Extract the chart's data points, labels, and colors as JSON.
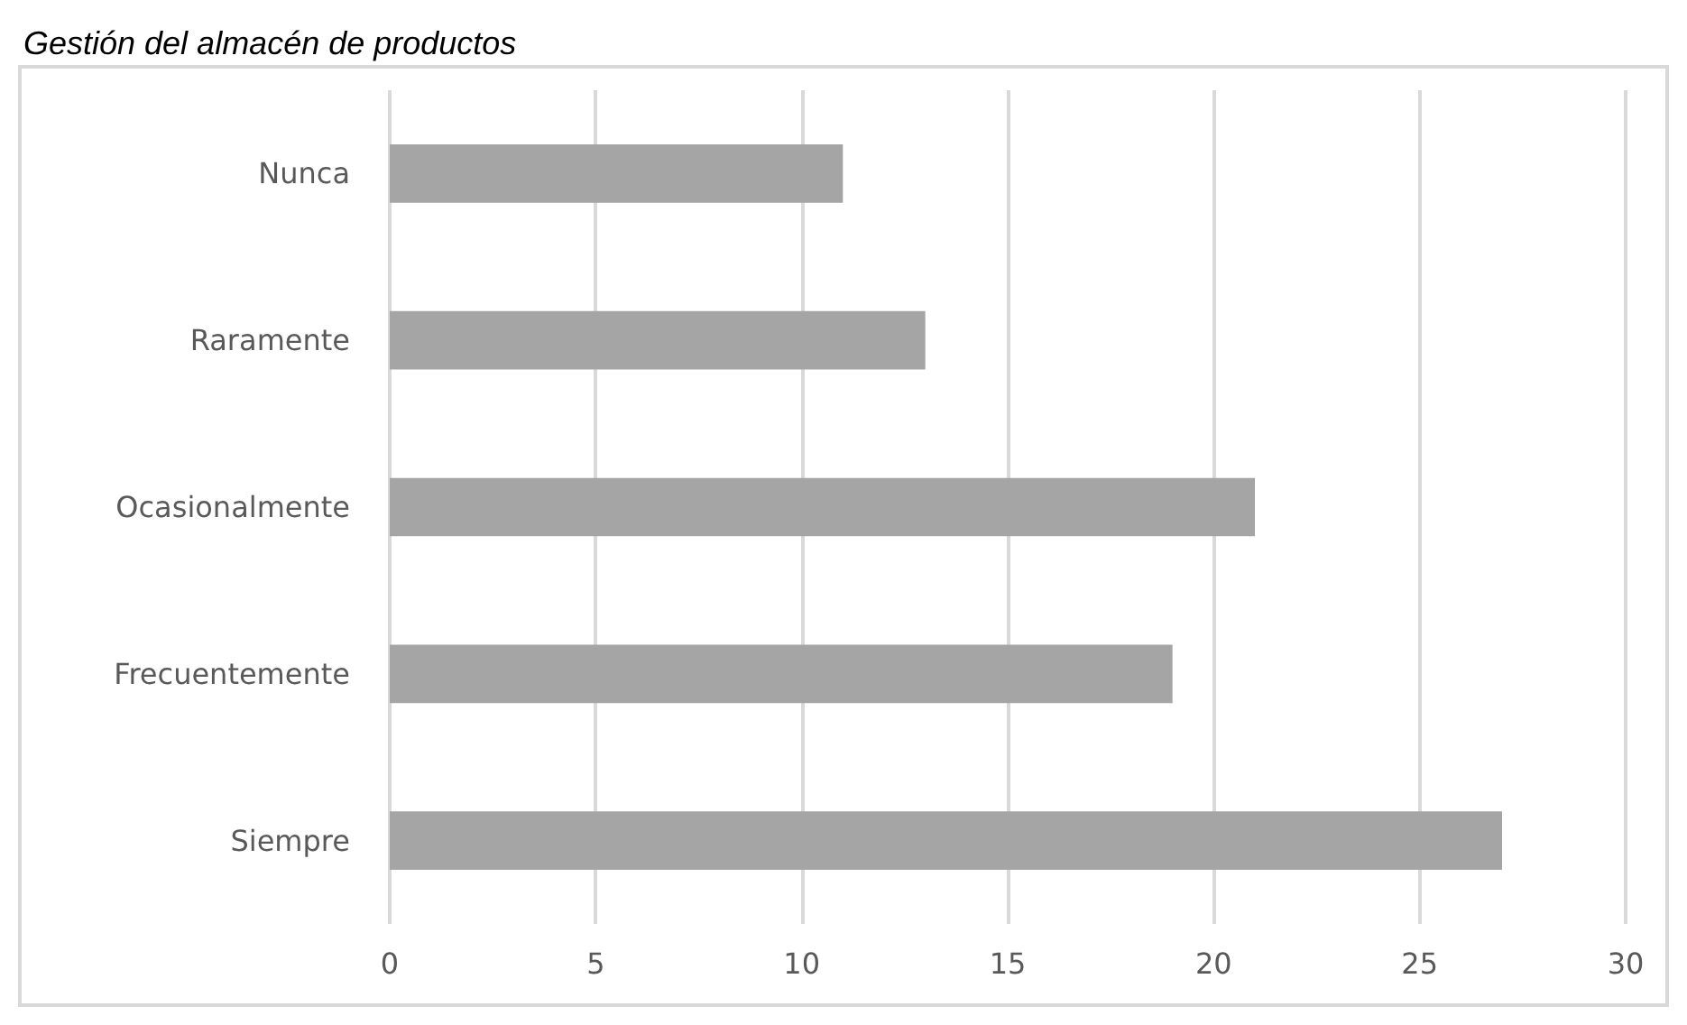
{
  "chart_data": {
    "type": "bar",
    "orientation": "horizontal",
    "title": "Gestión del almacén de productos",
    "categories": [
      "Nunca",
      "Raramente",
      "Ocasionalmente",
      "Frecuentemente",
      "Siempre"
    ],
    "values": [
      11,
      13,
      21,
      19,
      27
    ],
    "color": "#a5a5a5",
    "xlim": [
      0,
      30
    ],
    "xticks": [
      0,
      5,
      10,
      15,
      20,
      25,
      30
    ],
    "grid": "x"
  }
}
